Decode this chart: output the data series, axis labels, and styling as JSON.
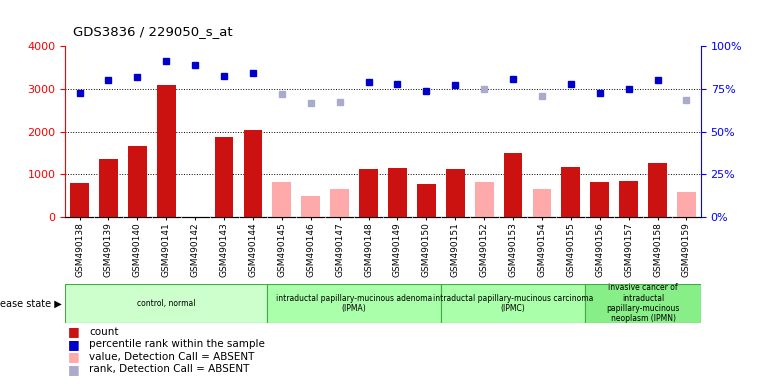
{
  "title": "GDS3836 / 229050_s_at",
  "samples": [
    "GSM490138",
    "GSM490139",
    "GSM490140",
    "GSM490141",
    "GSM490142",
    "GSM490143",
    "GSM490144",
    "GSM490145",
    "GSM490146",
    "GSM490147",
    "GSM490148",
    "GSM490149",
    "GSM490150",
    "GSM490151",
    "GSM490152",
    "GSM490153",
    "GSM490154",
    "GSM490155",
    "GSM490156",
    "GSM490157",
    "GSM490158",
    "GSM490159"
  ],
  "count_present": [
    800,
    1350,
    1650,
    3100,
    null,
    1880,
    2040,
    null,
    null,
    null,
    1130,
    1150,
    780,
    1120,
    null,
    1500,
    null,
    1170,
    830,
    840,
    1260,
    null
  ],
  "count_absent": [
    null,
    null,
    null,
    null,
    null,
    null,
    null,
    820,
    500,
    660,
    null,
    null,
    null,
    null,
    820,
    null,
    660,
    null,
    null,
    null,
    null,
    590
  ],
  "rank_present": [
    2900,
    3200,
    3280,
    3640,
    3560,
    3290,
    3360,
    null,
    null,
    null,
    3150,
    3120,
    2960,
    3100,
    null,
    3230,
    null,
    3110,
    2900,
    3000,
    3200,
    null
  ],
  "rank_absent": [
    null,
    null,
    null,
    null,
    null,
    null,
    null,
    2870,
    2670,
    2680,
    null,
    null,
    null,
    null,
    2990,
    null,
    2820,
    null,
    null,
    null,
    null,
    2730
  ],
  "ylim_left": [
    0,
    4000
  ],
  "ylim_right": [
    0,
    100
  ],
  "yticks_left": [
    0,
    1000,
    2000,
    3000,
    4000
  ],
  "yticks_right": [
    0,
    25,
    50,
    75,
    100
  ],
  "disease_groups": [
    {
      "label": "control, normal",
      "start": 0,
      "end": 7
    },
    {
      "label": "intraductal papillary-mucinous adenoma\n(IPMA)",
      "start": 7,
      "end": 13
    },
    {
      "label": "intraductal papillary-mucinous carcinoma\n(IPMC)",
      "start": 13,
      "end": 18
    },
    {
      "label": "invasive cancer of\nintraductal\npapillary-mucinous\nneoplasm (IPMN)",
      "start": 18,
      "end": 22
    }
  ],
  "group_colors": [
    "#ccffcc",
    "#aaffaa",
    "#aaffaa",
    "#88ee88"
  ],
  "bar_color_present": "#cc1111",
  "bar_color_absent": "#ffaaaa",
  "dot_color_present": "#0000cc",
  "dot_color_absent": "#aaaacc"
}
